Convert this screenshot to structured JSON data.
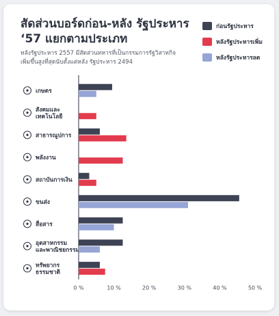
{
  "title": "สัดส่วนบอร์ดก่อน-หลัง รัฐประหาร ‘57 แยกตามประเภท",
  "subtitle": "หลังรัฐประหาร 2557 มีสัดส่วนทหารที่เป็นกรรมการรัฐวิสาหกิจเพิ่มขึ้นสูงที่สุดนับตั้งแต่หลัง รัฐประหาร 2494",
  "colors": {
    "before": "#3d4354",
    "increase": "#e23b4e",
    "decrease": "#96a5d6"
  },
  "chart_data": {
    "type": "bar",
    "orientation": "horizontal",
    "categories": [
      "เกษตร",
      "สังคมและเทคโนโลยี",
      "สาธารณูปการ",
      "พลังงาน",
      "สถาบันการเงิน",
      "ขนส่ง",
      "สื่อสาร",
      "อุตสาหกรรมและพาณิชยกรรม",
      "ทรัพยากรธรรมชาติ"
    ],
    "category_lines": [
      [
        "เกษตร"
      ],
      [
        "สังคมและ",
        "เทคโนโลยี"
      ],
      [
        "สาธารณูปการ"
      ],
      [
        "พลังงาน"
      ],
      [
        "สถาบันการเงิน"
      ],
      [
        "ขนส่ง"
      ],
      [
        "สื่อสาร"
      ],
      [
        "อุตสาหกรรม",
        "และพาณิชยกรรม"
      ],
      [
        "ทรัพยากร",
        "ธรรมชาติ"
      ]
    ],
    "category_icons": [
      "wheat-icon",
      "globe-icon",
      "droplet-icon",
      "power-icon",
      "coin-icon",
      "truck-icon",
      "phone-icon",
      "factory-icon",
      "mountain-icon"
    ],
    "series": [
      {
        "name": "ก่อนรัฐประหาร",
        "values": [
          9.5,
          0,
          6,
          0,
          3,
          45.5,
          12.5,
          12.5,
          6
        ]
      },
      {
        "name": "หลังรัฐประหารเพิ่ม",
        "values": [
          0,
          5,
          13.5,
          12.5,
          5,
          0,
          0,
          0,
          7.5
        ]
      },
      {
        "name": "หลังรัฐประหารลด",
        "values": [
          5,
          0,
          0,
          0,
          0,
          31,
          10,
          6,
          0
        ]
      }
    ],
    "second_bar_series": [
      2,
      1,
      1,
      1,
      1,
      2,
      2,
      2,
      1
    ],
    "xlim": [
      0,
      50
    ],
    "xticks": [
      "0 %",
      "10 %",
      "20 %",
      "30 %",
      "40 %",
      "50 %"
    ],
    "xtick_values": [
      0,
      10,
      20,
      30,
      40,
      50
    ],
    "legend_position": "top-right",
    "grid": false
  }
}
